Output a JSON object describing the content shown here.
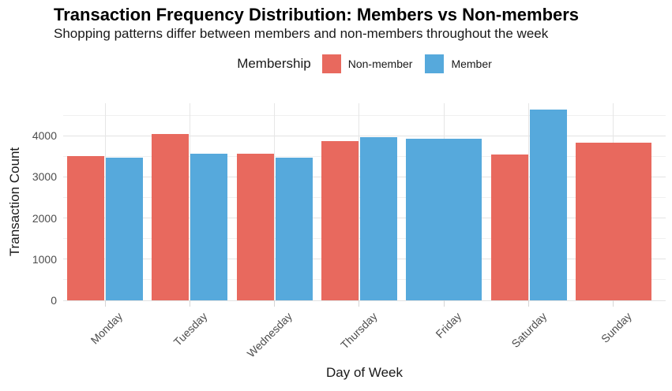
{
  "chart_data": {
    "type": "bar",
    "title": "Transaction Frequency Distribution: Members vs Non-members",
    "subtitle": "Shopping patterns differ between members and non-members throughout the week",
    "xlabel": "Day of Week",
    "ylabel": "Transaction Count",
    "legend": {
      "title": "Membership",
      "position": "top"
    },
    "categories": [
      "Monday",
      "Tuesday",
      "Wednesday",
      "Thursday",
      "Friday",
      "Saturday",
      "Sunday"
    ],
    "series": [
      {
        "name": "Non-member",
        "color": "#E8695E",
        "values": [
          3510,
          4040,
          3570,
          3880,
          null,
          3550,
          3830
        ]
      },
      {
        "name": "Member",
        "color": "#56A9DC",
        "values": [
          3470,
          3570,
          3470,
          3970,
          3930,
          4630,
          null
        ]
      }
    ],
    "ylim": [
      0,
      4790
    ],
    "yticks": [
      0,
      1000,
      2000,
      3000,
      4000
    ],
    "grid": {
      "horizontal_major": true,
      "horizontal_minor": true,
      "vertical_major": true
    }
  },
  "colors": {
    "non_member": "#E8695E",
    "member": "#56A9DC",
    "axis_text": "#4D4D4D",
    "grid_major": "#E3E3E3",
    "grid_minor": "#F0F0F0",
    "background": "#FFFFFF"
  }
}
